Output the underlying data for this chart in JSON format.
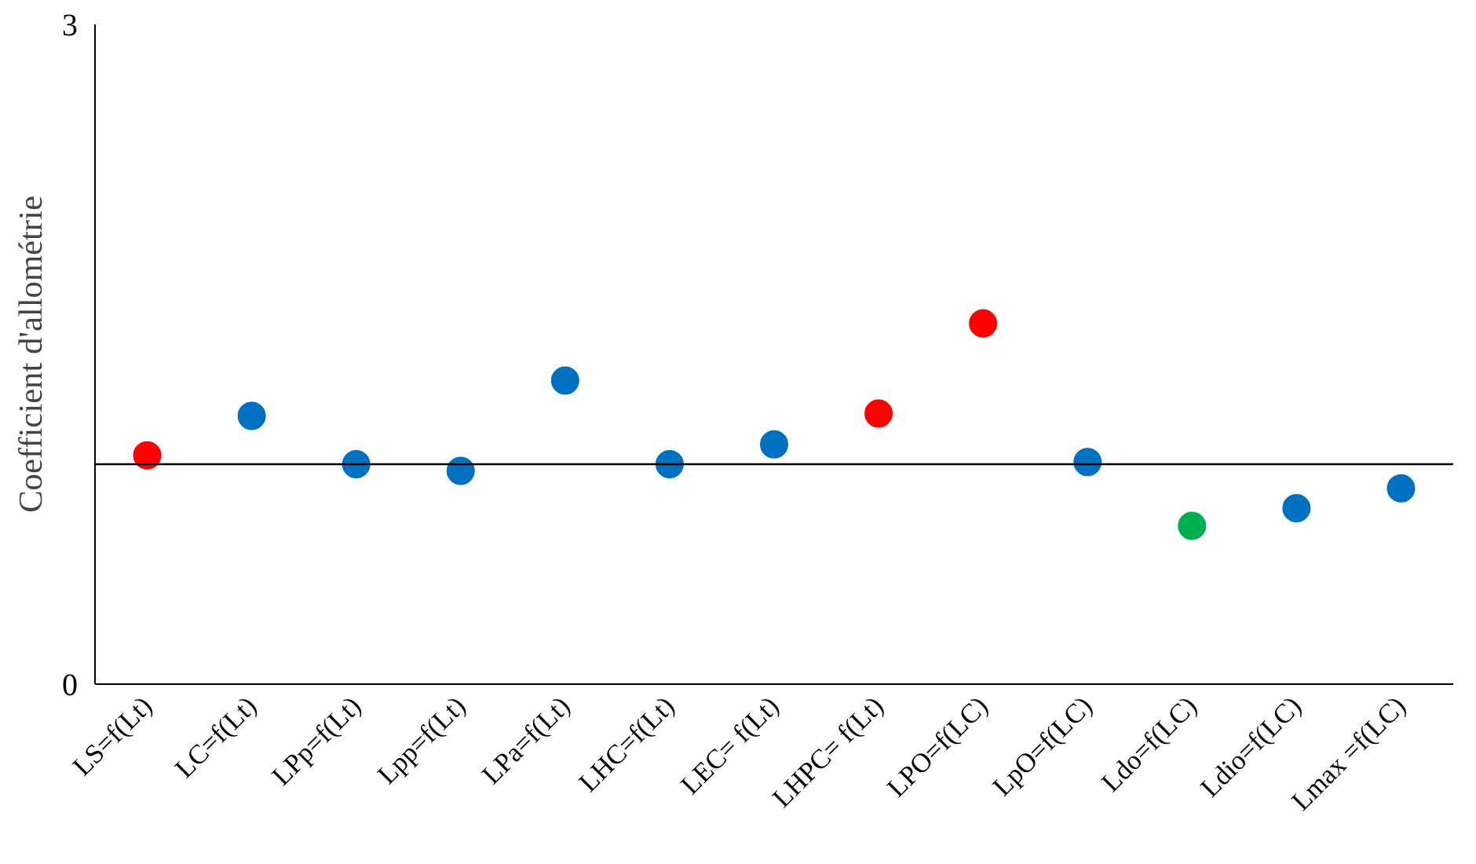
{
  "chart_data": {
    "type": "scatter",
    "ylabel": "Coefficient d'allométrie",
    "categories": [
      "LS=f(Lt)",
      "LC=f(Lt)",
      "LPp=f(Lt)",
      "Lpp=f(Lt)",
      "LPa=f(Lt)",
      "LHC=f(Lt)",
      "LEC= f(Lt)",
      "LHPC= f(Lt)",
      "LPO=f(LC)",
      "LpO=f(LC)",
      "Ldo=f(LC)",
      "Ldio=f(LC)",
      "Lmax =f(LC)"
    ],
    "values": [
      1.04,
      1.22,
      1.0,
      0.97,
      1.38,
      1.0,
      1.09,
      1.23,
      1.64,
      1.01,
      0.72,
      0.8,
      0.89
    ],
    "colors": [
      "#ff0000",
      "#0070c0",
      "#0070c0",
      "#0070c0",
      "#0070c0",
      "#0070c0",
      "#0070c0",
      "#ff0000",
      "#ff0000",
      "#0070c0",
      "#00b050",
      "#0070c0",
      "#0070c0"
    ],
    "ylim": [
      0,
      3
    ],
    "yticks": [
      0,
      3
    ],
    "marker": "circle",
    "ref_lines": [
      {
        "axis": "y",
        "value": 1,
        "color": "#000000"
      }
    ]
  }
}
